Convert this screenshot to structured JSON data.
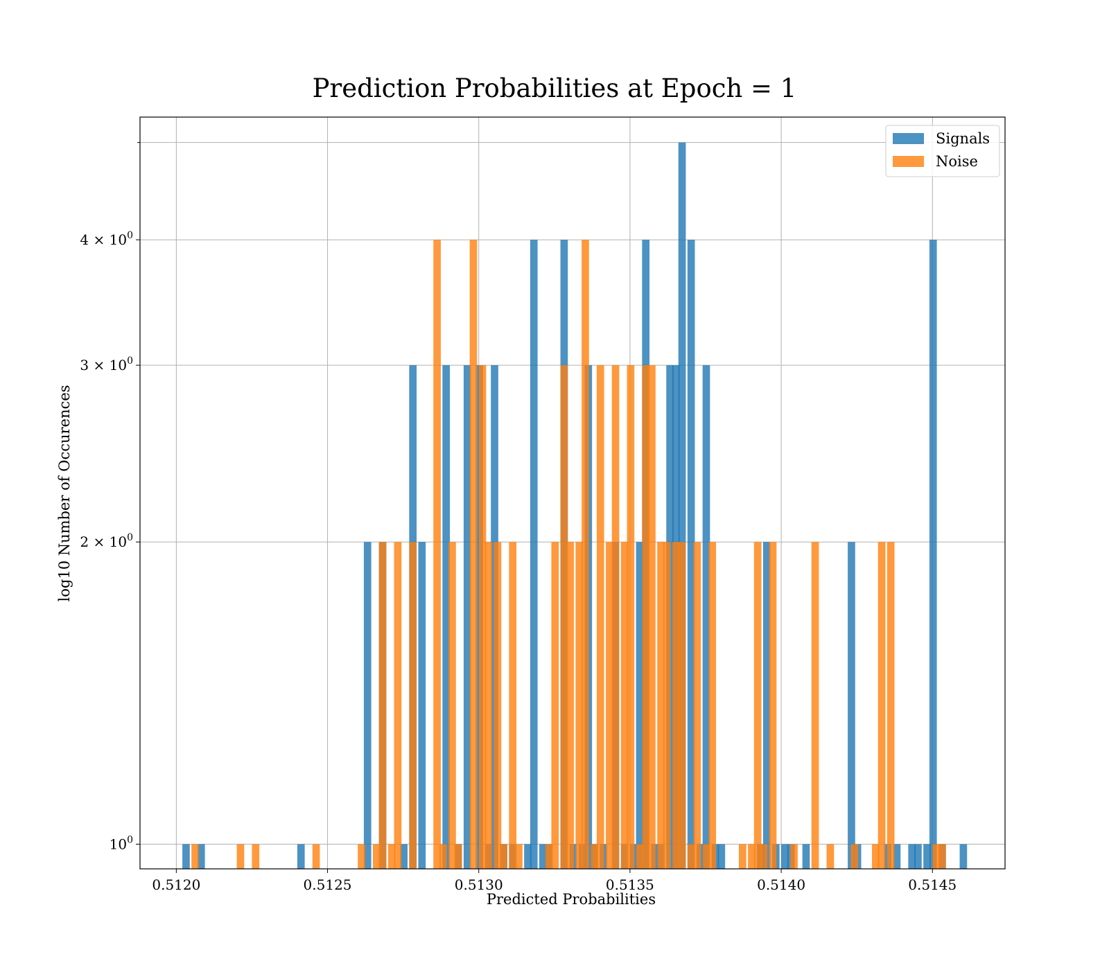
{
  "chart_data": {
    "type": "bar",
    "title": "Prediction Probabilities at Epoch = 1",
    "xlabel": "Predicted Probabilities",
    "ylabel": "log10 Number of Occurences",
    "yscale": "log",
    "xlim": [
      0.51188,
      0.51474
    ],
    "ylim": [
      0.945,
      5.3
    ],
    "bin_width": 2.45e-05,
    "grid": true,
    "legend_position": "top-right",
    "xticks": [
      {
        "value": 0.512,
        "label": "0.5120"
      },
      {
        "value": 0.5125,
        "label": "0.5125"
      },
      {
        "value": 0.513,
        "label": "0.5130"
      },
      {
        "value": 0.5135,
        "label": "0.5135"
      },
      {
        "value": 0.514,
        "label": "0.5140"
      },
      {
        "value": 0.5145,
        "label": "0.5145"
      }
    ],
    "yticks": [
      {
        "value": 1,
        "base": "10",
        "exp": "0"
      },
      {
        "value": 2,
        "base": "2 × 10",
        "exp": "0"
      },
      {
        "value": 3,
        "base": "3 × 10",
        "exp": "0"
      },
      {
        "value": 4,
        "base": "4 × 10",
        "exp": "0"
      }
    ],
    "series": [
      {
        "name": "Signals",
        "color": "#1f77b4",
        "bins": [
          [
            0.51202,
            1
          ],
          [
            0.51207,
            1
          ],
          [
            0.5124,
            1
          ],
          [
            0.51262,
            2
          ],
          [
            0.51267,
            2
          ],
          [
            0.51274,
            1
          ],
          [
            0.51277,
            3
          ],
          [
            0.5128,
            2
          ],
          [
            0.51288,
            3
          ],
          [
            0.51292,
            1
          ],
          [
            0.51295,
            3
          ],
          [
            0.51299,
            3
          ],
          [
            0.51302,
            1
          ],
          [
            0.51304,
            3
          ],
          [
            0.51307,
            1
          ],
          [
            0.5131,
            1
          ],
          [
            0.51315,
            1
          ],
          [
            0.51317,
            4
          ],
          [
            0.5132,
            1
          ],
          [
            0.51322,
            1
          ],
          [
            0.51327,
            4
          ],
          [
            0.5133,
            1
          ],
          [
            0.51333,
            1
          ],
          [
            0.51335,
            3
          ],
          [
            0.51337,
            1
          ],
          [
            0.5134,
            1
          ],
          [
            0.51344,
            2
          ],
          [
            0.51347,
            1
          ],
          [
            0.5135,
            1
          ],
          [
            0.51352,
            2
          ],
          [
            0.51354,
            4
          ],
          [
            0.51357,
            1
          ],
          [
            0.51359,
            1
          ],
          [
            0.51362,
            3
          ],
          [
            0.51364,
            3
          ],
          [
            0.51366,
            5
          ],
          [
            0.51369,
            4
          ],
          [
            0.51372,
            1
          ],
          [
            0.51374,
            3
          ],
          [
            0.51377,
            1
          ],
          [
            0.51379,
            1
          ],
          [
            0.51392,
            1
          ],
          [
            0.51394,
            2
          ],
          [
            0.51397,
            1
          ],
          [
            0.514,
            1
          ],
          [
            0.51402,
            1
          ],
          [
            0.51407,
            1
          ],
          [
            0.51422,
            2
          ],
          [
            0.51424,
            1
          ],
          [
            0.51434,
            1
          ],
          [
            0.51437,
            1
          ],
          [
            0.51442,
            1
          ],
          [
            0.51444,
            1
          ],
          [
            0.51447,
            1
          ],
          [
            0.51449,
            4
          ],
          [
            0.51452,
            1
          ],
          [
            0.51459,
            1
          ]
        ]
      },
      {
        "name": "Noise",
        "color": "#ff7f0e",
        "bins": [
          [
            0.51205,
            1
          ],
          [
            0.5122,
            1
          ],
          [
            0.51225,
            1
          ],
          [
            0.51245,
            1
          ],
          [
            0.5126,
            1
          ],
          [
            0.51265,
            1
          ],
          [
            0.51267,
            2
          ],
          [
            0.5127,
            1
          ],
          [
            0.51272,
            2
          ],
          [
            0.51277,
            2
          ],
          [
            0.51285,
            4
          ],
          [
            0.51287,
            1
          ],
          [
            0.5129,
            2
          ],
          [
            0.51292,
            1
          ],
          [
            0.51297,
            4
          ],
          [
            0.513,
            3
          ],
          [
            0.51302,
            2
          ],
          [
            0.51305,
            2
          ],
          [
            0.51307,
            1
          ],
          [
            0.5131,
            2
          ],
          [
            0.51312,
            1
          ],
          [
            0.51322,
            1
          ],
          [
            0.51324,
            2
          ],
          [
            0.51327,
            3
          ],
          [
            0.51329,
            2
          ],
          [
            0.51332,
            2
          ],
          [
            0.51334,
            4
          ],
          [
            0.51337,
            1
          ],
          [
            0.51339,
            3
          ],
          [
            0.51342,
            2
          ],
          [
            0.51344,
            3
          ],
          [
            0.51347,
            2
          ],
          [
            0.51349,
            3
          ],
          [
            0.51352,
            1
          ],
          [
            0.51354,
            3
          ],
          [
            0.51356,
            3
          ],
          [
            0.51359,
            2
          ],
          [
            0.51361,
            2
          ],
          [
            0.51364,
            2
          ],
          [
            0.51366,
            2
          ],
          [
            0.51369,
            1
          ],
          [
            0.51371,
            2
          ],
          [
            0.51374,
            1
          ],
          [
            0.51376,
            2
          ],
          [
            0.51386,
            1
          ],
          [
            0.51389,
            1
          ],
          [
            0.51391,
            2
          ],
          [
            0.51393,
            1
          ],
          [
            0.51396,
            2
          ],
          [
            0.51403,
            1
          ],
          [
            0.5141,
            2
          ],
          [
            0.51415,
            1
          ],
          [
            0.51423,
            1
          ],
          [
            0.5143,
            1
          ],
          [
            0.51432,
            2
          ],
          [
            0.51435,
            2
          ],
          [
            0.5145,
            1
          ],
          [
            0.51452,
            1
          ]
        ]
      }
    ]
  }
}
